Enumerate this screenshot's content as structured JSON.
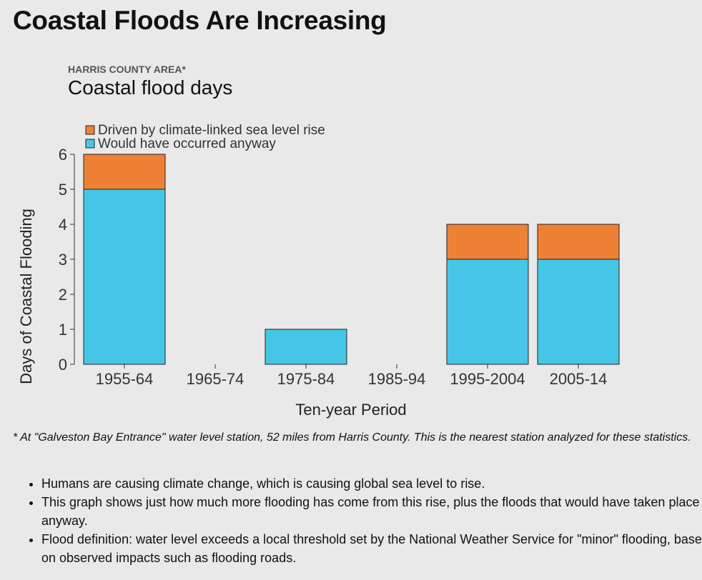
{
  "page": {
    "title": "Coastal Floods Are Increasing",
    "footnote": "* At \"Galveston Bay Entrance\" water level station, 52 miles from Harris County. This is the nearest station analyzed for these statistics.",
    "bullets": [
      "Humans are causing climate change, which is causing global sea level to rise.",
      "This graph shows just how much more flooding has come from this rise, plus the floods that would have taken place anyway.",
      "Flood definition: water level exceeds a local threshold set by the National Weather Service for \"minor\" flooding, based on observed impacts such as flooding roads."
    ]
  },
  "chart_data": {
    "type": "bar",
    "stacked": true,
    "subtitle": "HARRIS COUNTY AREA*",
    "title": "Coastal flood days",
    "xlabel": "Ten-year Period",
    "ylabel": "Days of Coastal Flooding",
    "categories": [
      "1955-64",
      "1965-74",
      "1975-84",
      "1985-94",
      "1995-2004",
      "2005-14"
    ],
    "series": [
      {
        "name": "Would have occurred anyway",
        "color": "#46c6e6",
        "values": [
          5,
          0,
          1,
          0,
          3,
          3
        ]
      },
      {
        "name": "Driven by climate-linked sea level rise",
        "color": "#ef8136",
        "values": [
          1,
          0,
          0,
          0,
          1,
          1
        ]
      }
    ],
    "ylim": [
      0,
      6
    ],
    "yticks": [
      0,
      1,
      2,
      3,
      4,
      5,
      6
    ],
    "legend_position": "top-left",
    "legend_order": [
      1,
      0
    ],
    "grid": false
  }
}
